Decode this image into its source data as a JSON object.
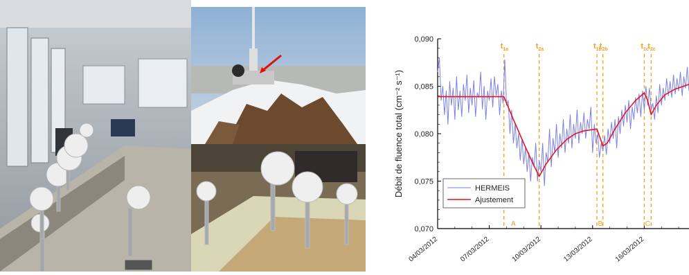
{
  "chart_data": {
    "type": "line",
    "ylabel": "Débit de fluence total (cm⁻² s⁻¹)",
    "ylim": [
      0.07,
      0.09
    ],
    "yticks": [
      "0,090",
      "0,085",
      "0,080",
      "0,075",
      "0,070"
    ],
    "ytick_values": [
      0.09,
      0.085,
      0.08,
      0.075,
      0.07
    ],
    "xlim": [
      0,
      14.6
    ],
    "xticks": [
      "04/03/2012",
      "07/03/2012",
      "10/03/2012",
      "13/03/2012",
      "16/03/2012"
    ],
    "xtick_values": [
      0,
      3,
      6,
      9,
      12
    ],
    "legend_position": "bottom-left",
    "legend": [
      "HERMEIS",
      "Ajustement"
    ],
    "series": [
      {
        "name": "HERMEIS",
        "color": "#7b7fe8",
        "x": [
          0,
          0.1,
          0.2,
          0.3,
          0.4,
          0.5,
          0.6,
          0.7,
          0.8,
          0.9,
          1.0,
          1.1,
          1.2,
          1.3,
          1.4,
          1.5,
          1.6,
          1.7,
          1.8,
          1.9,
          2.0,
          2.1,
          2.2,
          2.3,
          2.4,
          2.5,
          2.6,
          2.7,
          2.8,
          2.9,
          3.0,
          3.1,
          3.2,
          3.3,
          3.4,
          3.5,
          3.6,
          3.7,
          3.8,
          3.9,
          4.0,
          4.1,
          4.2,
          4.3,
          4.4,
          4.5,
          4.6,
          4.7,
          4.8,
          4.9,
          5.0,
          5.1,
          5.2,
          5.3,
          5.4,
          5.5,
          5.6,
          5.7,
          5.8,
          5.9,
          6.0,
          6.1,
          6.2,
          6.3,
          6.4,
          6.5,
          6.6,
          6.7,
          6.8,
          6.9,
          7.0,
          7.1,
          7.2,
          7.3,
          7.4,
          7.5,
          7.6,
          7.7,
          7.8,
          7.9,
          8.0,
          8.1,
          8.2,
          8.3,
          8.4,
          8.5,
          8.6,
          8.7,
          8.8,
          8.9,
          9.0,
          9.1,
          9.2,
          9.3,
          9.4,
          9.5,
          9.6,
          9.7,
          9.8,
          9.9,
          10.0,
          10.1,
          10.2,
          10.3,
          10.4,
          10.5,
          10.6,
          10.7,
          10.8,
          10.9,
          11.0,
          11.1,
          11.2,
          11.3,
          11.4,
          11.5,
          11.6,
          11.7,
          11.8,
          11.9,
          12.0,
          12.1,
          12.2,
          12.3,
          12.4,
          12.5,
          12.6,
          12.7,
          12.8,
          12.9,
          13.0,
          13.1,
          13.2,
          13.3,
          13.4,
          13.5,
          13.6,
          13.7,
          13.8,
          13.9,
          14.0,
          14.1,
          14.2,
          14.3,
          14.4,
          14.5,
          14.6
        ],
        "y": [
          0.0865,
          0.088,
          0.0835,
          0.085,
          0.082,
          0.0845,
          0.081,
          0.0855,
          0.083,
          0.0848,
          0.0815,
          0.086,
          0.0825,
          0.0845,
          0.0818,
          0.0852,
          0.0835,
          0.0862,
          0.0822,
          0.0848,
          0.083,
          0.0856,
          0.0818,
          0.0843,
          0.0838,
          0.0865,
          0.0826,
          0.085,
          0.0815,
          0.0845,
          0.0835,
          0.0858,
          0.0828,
          0.086,
          0.084,
          0.0852,
          0.082,
          0.0845,
          0.0832,
          0.0878,
          0.083,
          0.0835,
          0.08,
          0.0825,
          0.079,
          0.081,
          0.0785,
          0.08,
          0.0772,
          0.0795,
          0.0768,
          0.0785,
          0.076,
          0.078,
          0.075,
          0.0775,
          0.0765,
          0.079,
          0.075,
          0.0772,
          0.076,
          0.079,
          0.0745,
          0.078,
          0.077,
          0.0805,
          0.0765,
          0.0795,
          0.078,
          0.081,
          0.0775,
          0.08,
          0.0785,
          0.0815,
          0.078,
          0.0805,
          0.079,
          0.082,
          0.0785,
          0.081,
          0.0795,
          0.0825,
          0.079,
          0.0812,
          0.08,
          0.0822,
          0.0795,
          0.0815,
          0.0805,
          0.0828,
          0.078,
          0.081,
          0.079,
          0.08,
          0.0775,
          0.079,
          0.0782,
          0.0798,
          0.0778,
          0.0805,
          0.079,
          0.0812,
          0.0795,
          0.0815,
          0.0785,
          0.0818,
          0.08,
          0.0825,
          0.0808,
          0.083,
          0.0812,
          0.0835,
          0.0805,
          0.0828,
          0.0815,
          0.0838,
          0.0822,
          0.0842,
          0.0818,
          0.0845,
          0.0825,
          0.085,
          0.083,
          0.0848,
          0.0825,
          0.0832,
          0.0815,
          0.084,
          0.0822,
          0.0852,
          0.083,
          0.0848,
          0.0835,
          0.0858,
          0.084,
          0.0855,
          0.0838,
          0.0862,
          0.0842,
          0.0858,
          0.0845,
          0.0865,
          0.084,
          0.086,
          0.0848,
          0.087,
          0.0845
        ]
      },
      {
        "name": "Ajustement",
        "color": "#e8141a",
        "x": [
          0,
          3.85,
          4.4,
          5.0,
          5.5,
          5.9,
          6.3,
          6.9,
          7.5,
          8.0,
          8.5,
          9.25,
          9.6,
          9.85,
          10.3,
          10.9,
          11.5,
          12.0,
          12.2,
          12.4,
          12.7,
          13.2,
          13.8,
          14.6
        ],
        "y": [
          0.0839,
          0.0839,
          0.0815,
          0.079,
          0.077,
          0.0755,
          0.0768,
          0.0783,
          0.0794,
          0.08,
          0.0803,
          0.0805,
          0.0787,
          0.079,
          0.0805,
          0.0822,
          0.0835,
          0.0843,
          0.0835,
          0.082,
          0.083,
          0.0841,
          0.0847,
          0.0852
        ]
      }
    ],
    "events": [
      {
        "label": "t1a",
        "x": 3.85
      },
      {
        "label": "t2a",
        "x": 5.9
      },
      {
        "label": "t1b",
        "x": 9.25
      },
      {
        "label": "t2b",
        "x": 9.6
      },
      {
        "label": "t1c",
        "x": 12.0
      },
      {
        "label": "t2c",
        "x": 12.4
      }
    ],
    "region_labels": [
      {
        "label": "A",
        "x": 4.4
      },
      {
        "label": "B",
        "x": 9.45
      },
      {
        "label": "C",
        "x": 12.2
      }
    ],
    "event_color": "#f0a020"
  }
}
